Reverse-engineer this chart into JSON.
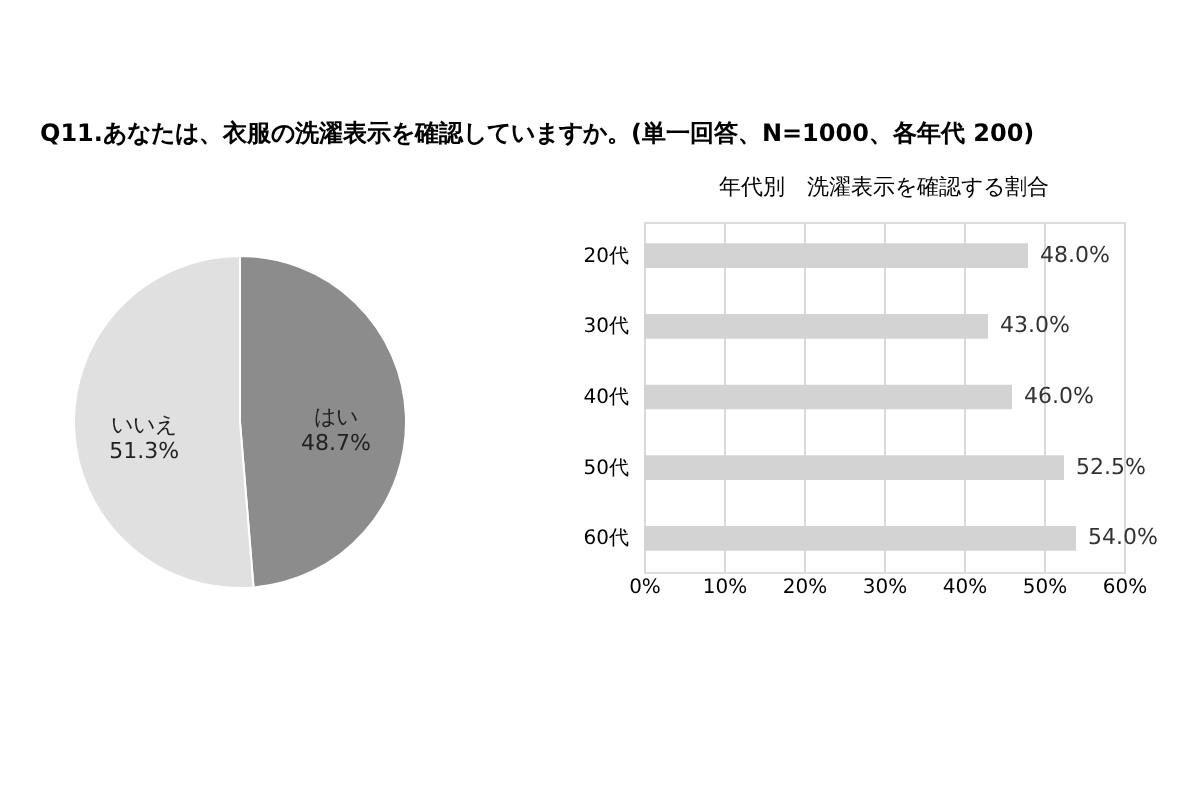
{
  "chart_data": [
    {
      "type": "pie",
      "title": "Q11.あなたは、衣服の洗濯表示を確認していますか。(単一回答、N=1000、各年代 200)",
      "categories": [
        "はい",
        "いいえ"
      ],
      "values": [
        48.7,
        51.3
      ],
      "colors": [
        "#8c8c8c",
        "#e0e0e0"
      ],
      "data_labels": true,
      "value_labels": [
        "48.7%",
        "51.3%"
      ]
    },
    {
      "type": "bar",
      "orientation": "horizontal",
      "title": "年代別　洗濯表示を確認する割合",
      "categories": [
        "20代",
        "30代",
        "40代",
        "50代",
        "60代"
      ],
      "values": [
        48.0,
        43.0,
        46.0,
        52.5,
        54.0
      ],
      "color": "#d3d3d3",
      "xlim": [
        0,
        60
      ],
      "xticks": [
        {
          "value": 0,
          "label": "0%"
        },
        {
          "value": 10,
          "label": "10%"
        },
        {
          "value": 20,
          "label": "20%"
        },
        {
          "value": 30,
          "label": "30%"
        },
        {
          "value": 40,
          "label": "40%"
        },
        {
          "value": 50,
          "label": "50%"
        },
        {
          "value": 60,
          "label": "60%"
        }
      ],
      "grid": "x",
      "data_labels": true,
      "value_labels": [
        "48.0%",
        "43.0%",
        "46.0%",
        "52.5%",
        "54.0%"
      ]
    }
  ]
}
